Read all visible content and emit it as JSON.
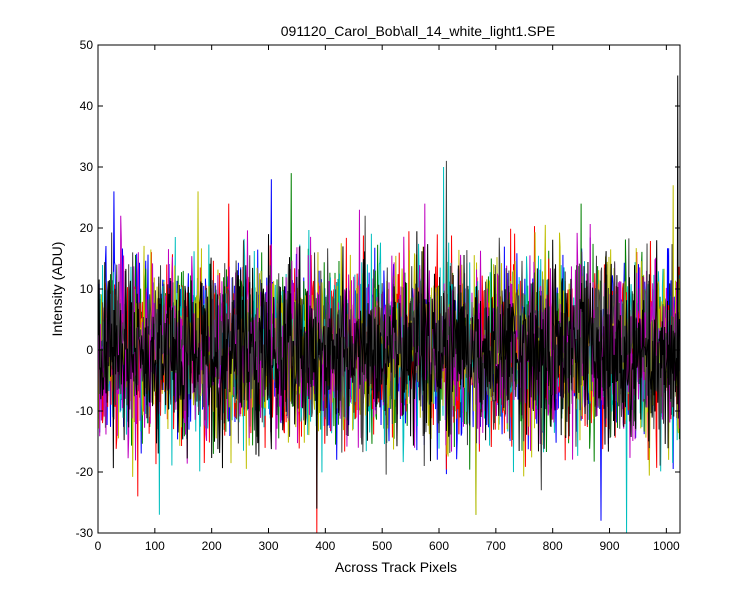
{
  "chart_data": {
    "type": "line",
    "title": "091120_Carol_Bob\\all_14_white_light1.SPE",
    "xlabel": "Across Track Pixels",
    "ylabel": "Intensity (ADU)",
    "xlim": [
      0,
      1024
    ],
    "ylim": [
      -30,
      50
    ],
    "xticks": [
      0,
      100,
      200,
      300,
      400,
      500,
      600,
      700,
      800,
      900,
      1000
    ],
    "yticks": [
      -30,
      -20,
      -10,
      0,
      10,
      20,
      30,
      40,
      50
    ],
    "grid": false,
    "legend": "none",
    "pixel_count": 1024,
    "noise_band": [
      -15,
      15
    ],
    "series": [
      {
        "color": "#0000ff",
        "spikes": [
          [
            28,
            26
          ],
          [
            305,
            28
          ],
          [
            885,
            -28
          ]
        ]
      },
      {
        "color": "#008000",
        "spikes": [
          [
            340,
            29
          ],
          [
            850,
            24
          ],
          [
            665,
            -27
          ]
        ]
      },
      {
        "color": "#ff0000",
        "spikes": [
          [
            230,
            24
          ],
          [
            385,
            -30
          ],
          [
            70,
            -24
          ]
        ]
      },
      {
        "color": "#00bfbf",
        "spikes": [
          [
            108,
            -27
          ],
          [
            608,
            30
          ],
          [
            930,
            -30
          ]
        ]
      },
      {
        "color": "#bfbf00",
        "spikes": [
          [
            176,
            26
          ],
          [
            665,
            -27
          ],
          [
            1012,
            27
          ]
        ]
      },
      {
        "color": "#bf00bf",
        "spikes": [
          [
            460,
            23
          ],
          [
            575,
            24
          ],
          [
            40,
            22
          ]
        ]
      },
      {
        "color": "#404040",
        "spikes": [
          [
            613,
            31
          ],
          [
            470,
            22
          ],
          [
            780,
            -23
          ]
        ]
      },
      {
        "color": "#000000",
        "spikes": [
          [
            1020,
            45
          ],
          [
            385,
            -26
          ],
          [
            300,
            19
          ]
        ]
      }
    ]
  }
}
